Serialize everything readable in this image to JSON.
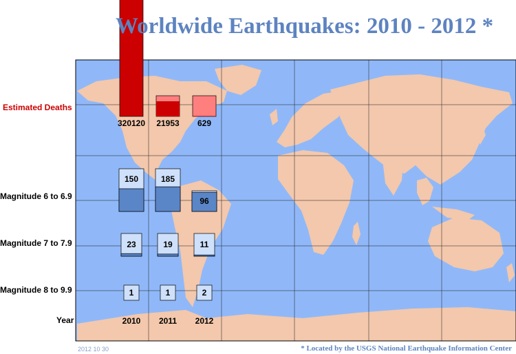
{
  "title": "Worldwide Earthquakes: 2010 - 2012 *",
  "footnote": "* Located by the USGS National Earthquake Information Center",
  "datestamp": "2012 10 30",
  "row_labels": {
    "deaths": "Estimated Deaths",
    "mag6": "Magnitude 6 to 6.9",
    "mag7": "Magnitude 7 to 7.9",
    "mag8": "Magnitude 8 to 9.9",
    "year": "Year"
  },
  "colors": {
    "ocean": "#90b8f8",
    "land": "#f3c8ac",
    "deaths_dark": "#cc0000",
    "deaths_light": "#ff7f7f",
    "mag_dark": "#5a86c8",
    "mag_light": "#cfe0fa",
    "title": "#5d83c0"
  },
  "chart_data": {
    "type": "bar",
    "categories": [
      "2010",
      "2011",
      "2012"
    ],
    "series": [
      {
        "key": "deaths",
        "values": [
          320120,
          21953,
          629
        ]
      },
      {
        "key": "mag6",
        "values": [
          150,
          185,
          96
        ]
      },
      {
        "key": "mag7",
        "values": [
          23,
          19,
          11
        ]
      },
      {
        "key": "mag8",
        "values": [
          1,
          1,
          2
        ]
      }
    ]
  }
}
